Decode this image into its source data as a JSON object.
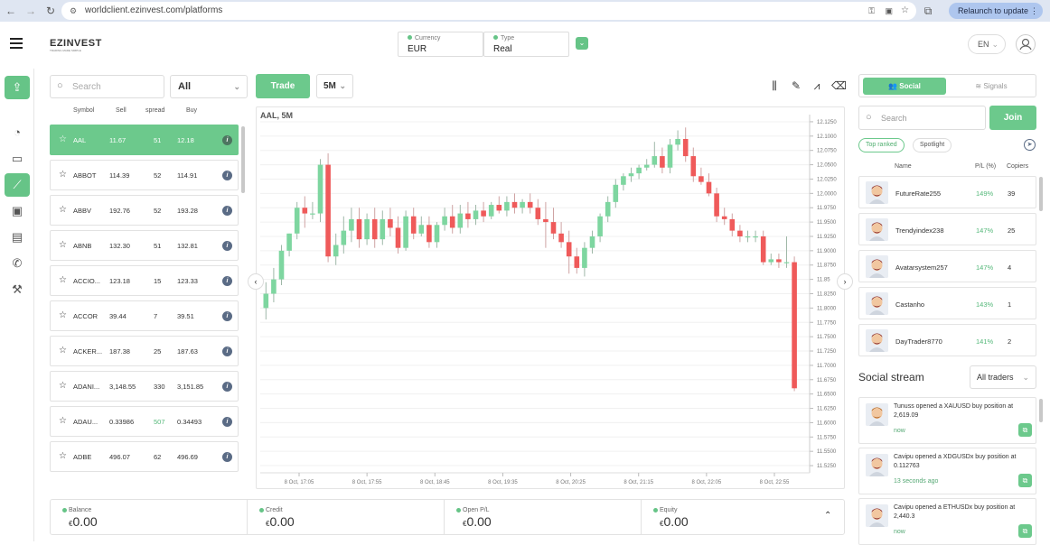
{
  "browser": {
    "url": "worldclient.ezinvest.com/platforms",
    "profile_initial": "B",
    "relaunch_label": "Relaunch to update"
  },
  "header": {
    "logo_text": "EZINVEST",
    "logo_tagline": "TRADING MADE SIMPLE",
    "currency_label": "Currency",
    "currency_value": "EUR",
    "type_label": "Type",
    "type_value": "Real",
    "language": "EN"
  },
  "symbols": {
    "search_placeholder": "Search",
    "filter_value": "All",
    "columns": [
      "Symbol",
      "Sell",
      "spread",
      "Buy"
    ],
    "rows": [
      {
        "symbol": "AAL",
        "sell": "11.67",
        "spread": "51",
        "buy": "12.18",
        "selected": true
      },
      {
        "symbol": "ABBOT",
        "sell": "114.39",
        "spread": "52",
        "buy": "114.91"
      },
      {
        "symbol": "ABBV",
        "sell": "192.76",
        "spread": "52",
        "buy": "193.28"
      },
      {
        "symbol": "ABNB",
        "sell": "132.30",
        "spread": "51",
        "buy": "132.81"
      },
      {
        "symbol": "ACCIO...",
        "sell": "123.18",
        "spread": "15",
        "buy": "123.33"
      },
      {
        "symbol": "ACCOR",
        "sell": "39.44",
        "spread": "7",
        "buy": "39.51"
      },
      {
        "symbol": "ACKER...",
        "sell": "187.38",
        "spread": "25",
        "buy": "187.63"
      },
      {
        "symbol": "ADANI...",
        "sell": "3,148.55",
        "spread": "330",
        "buy": "3,151.85"
      },
      {
        "symbol": "ADAU...",
        "sell": "0.33986",
        "spread": "507",
        "buy": "0.34493",
        "spread_color": "#55b87a"
      },
      {
        "symbol": "ADBE",
        "sell": "496.07",
        "spread": "62",
        "buy": "496.69"
      }
    ]
  },
  "toolbar": {
    "trade_label": "Trade",
    "timeframe": "5M"
  },
  "chart_data": {
    "type": "candlestick",
    "title": "AAL, 5M",
    "ylim": [
      11.5125,
      12.1375
    ],
    "y_ticks": [
      "12.1250",
      "12.1000",
      "12.0750",
      "12.0500",
      "12.0250",
      "12.0000",
      "11.9750",
      "11.9500",
      "11.9250",
      "11.9000",
      "11.8750",
      "11.85",
      "11.8250",
      "11.8000",
      "11.7750",
      "11.7500",
      "11.7250",
      "11.7000",
      "11.6750",
      "11.6500",
      "11.6250",
      "11.6000",
      "11.5750",
      "11.5500",
      "11.5250"
    ],
    "x_ticks": [
      "8 Oct, 17:05",
      "8 Oct, 17:55",
      "8 Oct, 18:45",
      "8 Oct, 19:35",
      "8 Oct, 20:25",
      "8 Oct, 21:15",
      "8 Oct, 22:05",
      "8 Oct, 22:55"
    ],
    "up_color": "#7ed6a0",
    "down_color": "#ef5a5a",
    "candles": [
      {
        "o": 11.8,
        "h": 11.845,
        "c": 11.825,
        "l": 11.78
      },
      {
        "o": 11.825,
        "h": 11.87,
        "c": 11.85,
        "l": 11.81
      },
      {
        "o": 11.85,
        "h": 11.91,
        "c": 11.9,
        "l": 11.84
      },
      {
        "o": 11.9,
        "h": 11.93,
        "c": 11.93,
        "l": 11.89
      },
      {
        "o": 11.93,
        "h": 11.985,
        "c": 11.975,
        "l": 11.92
      },
      {
        "o": 11.975,
        "h": 11.995,
        "c": 11.965,
        "l": 11.94
      },
      {
        "o": 11.965,
        "h": 11.985,
        "c": 11.965,
        "l": 11.955
      },
      {
        "o": 11.965,
        "h": 12.06,
        "c": 12.05,
        "l": 11.95
      },
      {
        "o": 12.05,
        "h": 12.07,
        "c": 11.89,
        "l": 11.88
      },
      {
        "o": 11.89,
        "h": 11.93,
        "c": 11.91,
        "l": 11.875
      },
      {
        "o": 11.91,
        "h": 11.96,
        "c": 11.935,
        "l": 11.895
      },
      {
        "o": 11.935,
        "h": 11.975,
        "c": 11.955,
        "l": 11.915
      },
      {
        "o": 11.955,
        "h": 11.975,
        "c": 11.92,
        "l": 11.905
      },
      {
        "o": 11.92,
        "h": 11.965,
        "c": 11.955,
        "l": 11.91
      },
      {
        "o": 11.955,
        "h": 11.975,
        "c": 11.92,
        "l": 11.905
      },
      {
        "o": 11.92,
        "h": 11.97,
        "c": 11.955,
        "l": 11.91
      },
      {
        "o": 11.955,
        "h": 11.975,
        "c": 11.94,
        "l": 11.925
      },
      {
        "o": 11.94,
        "h": 11.96,
        "c": 11.905,
        "l": 11.895
      },
      {
        "o": 11.905,
        "h": 11.97,
        "c": 11.96,
        "l": 11.9
      },
      {
        "o": 11.96,
        "h": 11.975,
        "c": 11.93,
        "l": 11.92
      },
      {
        "o": 11.93,
        "h": 11.96,
        "c": 11.945,
        "l": 11.925
      },
      {
        "o": 11.945,
        "h": 11.96,
        "c": 11.915,
        "l": 11.905
      },
      {
        "o": 11.915,
        "h": 11.95,
        "c": 11.945,
        "l": 11.905
      },
      {
        "o": 11.945,
        "h": 11.975,
        "c": 11.96,
        "l": 11.935
      },
      {
        "o": 11.96,
        "h": 11.98,
        "c": 11.94,
        "l": 11.93
      },
      {
        "o": 11.94,
        "h": 11.98,
        "c": 11.965,
        "l": 11.93
      },
      {
        "o": 11.965,
        "h": 11.985,
        "c": 11.955,
        "l": 11.94
      },
      {
        "o": 11.955,
        "h": 11.98,
        "c": 11.97,
        "l": 11.945
      },
      {
        "o": 11.97,
        "h": 11.985,
        "c": 11.96,
        "l": 11.95
      },
      {
        "o": 11.96,
        "h": 11.985,
        "c": 11.98,
        "l": 11.955
      },
      {
        "o": 11.98,
        "h": 11.995,
        "c": 11.97,
        "l": 11.965
      },
      {
        "o": 11.97,
        "h": 11.995,
        "c": 11.985,
        "l": 11.96
      },
      {
        "o": 11.985,
        "h": 12.0,
        "c": 11.975,
        "l": 11.965
      },
      {
        "o": 11.975,
        "h": 11.99,
        "c": 11.985,
        "l": 11.965
      },
      {
        "o": 11.985,
        "h": 12.0,
        "c": 11.975,
        "l": 11.965
      },
      {
        "o": 11.975,
        "h": 11.99,
        "c": 11.955,
        "l": 11.945
      },
      {
        "o": 11.955,
        "h": 11.985,
        "c": 11.95,
        "l": 11.905
      },
      {
        "o": 11.95,
        "h": 11.975,
        "c": 11.93,
        "l": 11.92
      },
      {
        "o": 11.93,
        "h": 11.95,
        "c": 11.915,
        "l": 11.905
      },
      {
        "o": 11.915,
        "h": 11.935,
        "c": 11.89,
        "l": 11.86
      },
      {
        "o": 11.89,
        "h": 11.905,
        "c": 11.87,
        "l": 11.86
      },
      {
        "o": 11.87,
        "h": 11.915,
        "c": 11.905,
        "l": 11.855
      },
      {
        "o": 11.905,
        "h": 11.935,
        "c": 11.925,
        "l": 11.895
      },
      {
        "o": 11.925,
        "h": 11.965,
        "c": 11.96,
        "l": 11.915
      },
      {
        "o": 11.96,
        "h": 11.995,
        "c": 11.985,
        "l": 11.95
      },
      {
        "o": 11.985,
        "h": 12.025,
        "c": 12.015,
        "l": 11.975
      },
      {
        "o": 12.015,
        "h": 12.035,
        "c": 12.03,
        "l": 12.005
      },
      {
        "o": 12.03,
        "h": 12.045,
        "c": 12.035,
        "l": 12.02
      },
      {
        "o": 12.035,
        "h": 12.05,
        "c": 12.045,
        "l": 12.025
      },
      {
        "o": 12.045,
        "h": 12.06,
        "c": 12.05,
        "l": 12.04
      },
      {
        "o": 12.05,
        "h": 12.09,
        "c": 12.065,
        "l": 12.045
      },
      {
        "o": 12.065,
        "h": 12.08,
        "c": 12.045,
        "l": 12.035
      },
      {
        "o": 12.045,
        "h": 12.095,
        "c": 12.085,
        "l": 12.035
      },
      {
        "o": 12.085,
        "h": 12.11,
        "c": 12.095,
        "l": 12.075
      },
      {
        "o": 12.095,
        "h": 12.115,
        "c": 12.065,
        "l": 12.055
      },
      {
        "o": 12.065,
        "h": 12.08,
        "c": 12.03,
        "l": 12.02
      },
      {
        "o": 12.03,
        "h": 12.045,
        "c": 12.02,
        "l": 12.015
      },
      {
        "o": 12.02,
        "h": 12.035,
        "c": 12.0,
        "l": 11.995
      },
      {
        "o": 12.0,
        "h": 12.01,
        "c": 11.96,
        "l": 11.95
      },
      {
        "o": 11.96,
        "h": 11.975,
        "c": 11.955,
        "l": 11.945
      },
      {
        "o": 11.955,
        "h": 11.965,
        "c": 11.935,
        "l": 11.925
      },
      {
        "o": 11.935,
        "h": 11.945,
        "c": 11.925,
        "l": 11.915
      },
      {
        "o": 11.925,
        "h": 11.935,
        "c": 11.925,
        "l": 11.915
      },
      {
        "o": 11.925,
        "h": 11.935,
        "c": 11.925,
        "l": 11.915
      },
      {
        "o": 11.925,
        "h": 11.935,
        "c": 11.88,
        "l": 11.875
      },
      {
        "o": 11.88,
        "h": 11.895,
        "c": 11.885,
        "l": 11.875
      },
      {
        "o": 11.885,
        "h": 11.895,
        "c": 11.88,
        "l": 11.87
      },
      {
        "o": 11.88,
        "h": 11.925,
        "c": 11.88,
        "l": 11.87
      },
      {
        "o": 11.88,
        "h": 11.89,
        "c": 11.66,
        "l": 11.655
      }
    ]
  },
  "balances": [
    {
      "label": "Balance",
      "currency": "€",
      "value": "0.00"
    },
    {
      "label": "Credit",
      "currency": "€",
      "value": "0.00"
    },
    {
      "label": "Open P/L",
      "currency": "€",
      "value": "0.00"
    },
    {
      "label": "Equity",
      "currency": "€",
      "value": "0.00"
    }
  ],
  "social": {
    "tab_social": "Social",
    "tab_signals": "Signals",
    "search_placeholder": "Search",
    "join_label": "Join",
    "filter_top": "Top ranked",
    "filter_spotlight": "Spotlight",
    "columns": [
      "Name",
      "P/L (%)",
      "Copiers"
    ],
    "traders": [
      {
        "name": "FutureRate255",
        "pl": "149%",
        "copiers": "39"
      },
      {
        "name": "Trendyindex238",
        "pl": "147%",
        "copiers": "25"
      },
      {
        "name": "Avatarsystem257",
        "pl": "147%",
        "copiers": "4"
      },
      {
        "name": "Castanho",
        "pl": "143%",
        "copiers": "1"
      },
      {
        "name": "DayTrader8770",
        "pl": "141%",
        "copiers": "2"
      }
    ],
    "stream_title": "Social stream",
    "stream_filter": "All traders",
    "posts": [
      {
        "text": "Tunuss opened a XAUUSD buy position at 2,619.09",
        "time": "now"
      },
      {
        "text": "Cavipu opened a XDGUSDx buy position at 0.112763",
        "time": "13 seconds ago"
      },
      {
        "text": "Cavipu opened a ETHUSDx buy position at 2,440.3",
        "time": "now"
      }
    ]
  }
}
